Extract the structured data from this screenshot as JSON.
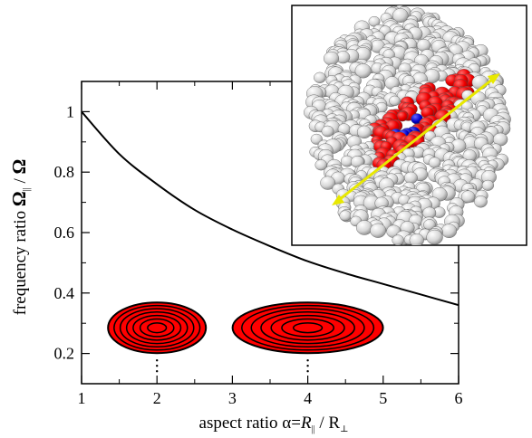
{
  "chart_data": {
    "type": "line",
    "title": "",
    "xlabel": {
      "prefix": "aspect ratio α=",
      "numerator": "R",
      "numerator_sub": "||",
      "separator": " / R",
      "denominator_sub": "⊥"
    },
    "ylabel": {
      "prefix": "frequency ratio ",
      "symbol": "Ω",
      "symbol_sub": "||",
      "separator": " / ",
      "denominator": "Ω"
    },
    "xlim": [
      1,
      6
    ],
    "ylim": [
      0.1,
      1.1
    ],
    "x_ticks": [
      1,
      2,
      3,
      4,
      5,
      6
    ],
    "x_tick_labels": [
      "1",
      "2",
      "3",
      "4",
      "5",
      "6"
    ],
    "y_ticks": [
      0.2,
      0.4,
      0.6,
      0.8,
      1.0
    ],
    "y_tick_labels": [
      "0.2",
      "0.4",
      "0.6",
      "0.8",
      "1"
    ],
    "grid": false,
    "series": [
      {
        "x": [
          1.0,
          1.5,
          2.0,
          2.5,
          3.0,
          3.5,
          4.0,
          4.5,
          5.0,
          5.5,
          6.0
        ],
        "y": [
          1.0,
          0.86,
          0.76,
          0.675,
          0.61,
          0.555,
          0.505,
          0.465,
          0.43,
          0.395,
          0.36
        ],
        "color": "#000000"
      }
    ],
    "annotations": [
      {
        "type": "ellipse-cloud",
        "x": 2,
        "y": 0.285,
        "aspect": 2,
        "fill": "#ff0000"
      },
      {
        "type": "ellipse-cloud",
        "x": 4,
        "y": 0.285,
        "aspect": 4,
        "fill": "#ff0000"
      }
    ]
  },
  "inset": {
    "colors": {
      "outer": "#f0f0f0",
      "middle": "#f00000",
      "core": "#0000cc",
      "axis": "#e8e800"
    }
  }
}
